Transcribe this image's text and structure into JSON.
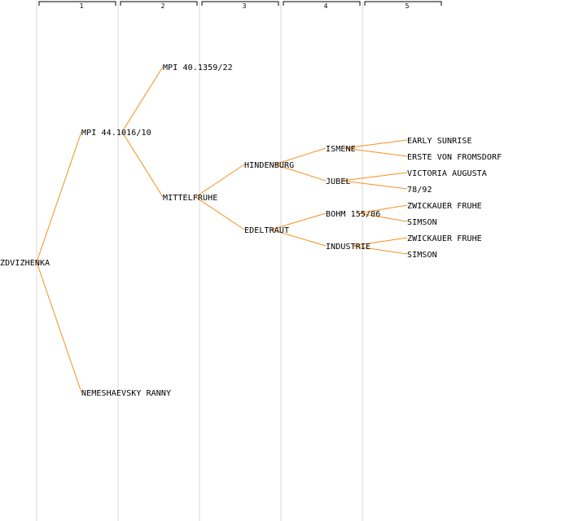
{
  "columns": [
    "1",
    "2",
    "3",
    "4",
    "5"
  ],
  "colors": {
    "edge": "#f5901e",
    "column_line": "#ececec",
    "text": "#000000",
    "background": "#ffffff"
  },
  "tree": {
    "name": "ZDVIZHENKA",
    "children": [
      {
        "name": "MPI 44.1016/10",
        "children": [
          {
            "name": "MPI 40.1359/22"
          },
          {
            "name": "MITTELFRUHE",
            "children": [
              {
                "name": "HINDENBURG",
                "children": [
                  {
                    "name": "ISMENE",
                    "children": [
                      {
                        "name": "EARLY SUNRISE"
                      },
                      {
                        "name": "ERSTE VON FROMSDORF"
                      }
                    ]
                  },
                  {
                    "name": "JUBEL",
                    "children": [
                      {
                        "name": "VICTORIA AUGUSTA"
                      },
                      {
                        "name": "78/92"
                      }
                    ]
                  }
                ]
              },
              {
                "name": "EDELTRAUT",
                "children": [
                  {
                    "name": "BOHM 155/06",
                    "children": [
                      {
                        "name": "ZWICKAUER FRUHE"
                      },
                      {
                        "name": "SIMSON"
                      }
                    ]
                  },
                  {
                    "name": "INDUSTRIE",
                    "children": [
                      {
                        "name": "ZWICKAUER FRUHE"
                      },
                      {
                        "name": "SIMSON"
                      }
                    ]
                  }
                ]
              }
            ]
          }
        ]
      },
      {
        "name": "NEMESHAEVSKY RANNY"
      }
    ]
  }
}
